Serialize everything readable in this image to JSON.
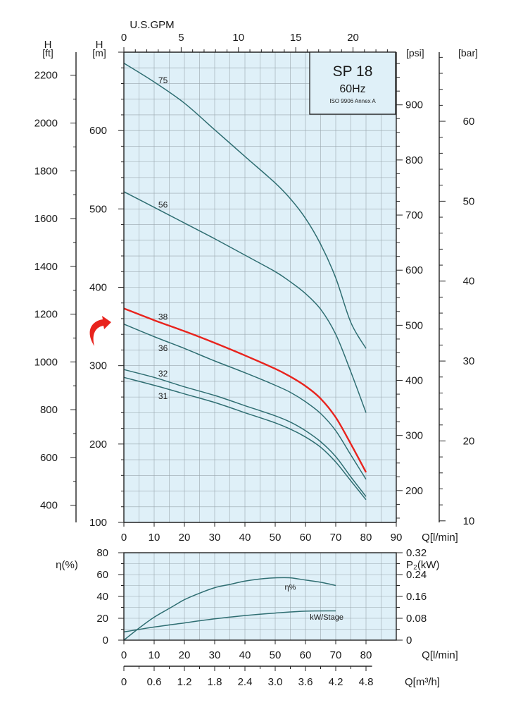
{
  "chart_data": [
    {
      "type": "line",
      "title": "SP 18",
      "subtitle": "60Hz",
      "note": "ISO 9906 Annex A",
      "xlabel": "Q[l/min]",
      "x_ticks": [
        "0",
        "10",
        "20",
        "30",
        "40",
        "50",
        "60",
        "70",
        "80",
        "90"
      ],
      "xlim": [
        0,
        90
      ],
      "top_xlabel": "U.S.GPM",
      "top_x_ticks": [
        "0",
        "5",
        "10",
        "15",
        "20"
      ],
      "ylabel_m_letter": "H",
      "ylabel_m_unit": "[m]",
      "y_ticks_m": [
        "100",
        "200",
        "300",
        "400",
        "500",
        "600"
      ],
      "ylim_m": [
        100,
        700
      ],
      "ylabel_ft_letter": "H",
      "ylabel_ft_unit": "[ft]",
      "y_ticks_ft": [
        "400",
        "600",
        "800",
        "1000",
        "1200",
        "1400",
        "1600",
        "1800",
        "2000",
        "2200"
      ],
      "ylabel_psi": "[psi]",
      "y_ticks_psi": [
        "200",
        "300",
        "400",
        "500",
        "600",
        "700",
        "800",
        "900"
      ],
      "ylabel_bar": "[bar]",
      "y_ticks_bar": [
        "10",
        "20",
        "30",
        "40",
        "50",
        "60"
      ],
      "grid": true,
      "highlight_color": "#e8231d",
      "curve_color": "#2f6e72",
      "background_color": "#dff0f8",
      "series": [
        {
          "name": "75",
          "x": [
            0,
            10,
            20,
            30,
            40,
            50,
            55,
            60,
            65,
            70,
            75,
            80
          ],
          "y": [
            686,
            662,
            635,
            601,
            567,
            533,
            513,
            488,
            455,
            412,
            355,
            322
          ],
          "highlight": false
        },
        {
          "name": "56",
          "x": [
            0,
            10,
            20,
            30,
            40,
            50,
            55,
            60,
            65,
            70,
            75,
            80
          ],
          "y": [
            522,
            502,
            482,
            462,
            441,
            420,
            407,
            392,
            372,
            340,
            292,
            240
          ],
          "highlight": false
        },
        {
          "name": "38",
          "x": [
            0,
            10,
            20,
            30,
            40,
            50,
            55,
            60,
            65,
            70,
            75,
            80
          ],
          "y": [
            373,
            358,
            344,
            329,
            313,
            296,
            286,
            274,
            258,
            234,
            200,
            164
          ],
          "highlight": true
        },
        {
          "name": "36",
          "x": [
            0,
            10,
            20,
            30,
            40,
            50,
            55,
            60,
            65,
            70,
            75,
            80
          ],
          "y": [
            353,
            337,
            322,
            306,
            291,
            275,
            266,
            254,
            239,
            217,
            186,
            155
          ],
          "highlight": false
        },
        {
          "name": "32",
          "x": [
            0,
            10,
            20,
            30,
            40,
            50,
            55,
            60,
            65,
            70,
            75,
            80
          ],
          "y": [
            295,
            285,
            273,
            262,
            249,
            236,
            228,
            217,
            203,
            184,
            158,
            133
          ],
          "highlight": false
        },
        {
          "name": "31",
          "x": [
            0,
            10,
            20,
            30,
            40,
            50,
            55,
            60,
            65,
            70,
            75,
            80
          ],
          "y": [
            285,
            275,
            264,
            253,
            240,
            227,
            219,
            209,
            196,
            177,
            153,
            129
          ],
          "highlight": false
        }
      ]
    },
    {
      "type": "line",
      "xlabel": "Q[l/min]",
      "x_ticks": [
        "0",
        "10",
        "20",
        "30",
        "40",
        "50",
        "60",
        "70",
        "80"
      ],
      "xlim": [
        0,
        80
      ],
      "ylabel_left": "η(%)",
      "y_ticks_left": [
        "0",
        "20",
        "40",
        "60",
        "80"
      ],
      "ylim_left": [
        0,
        80
      ],
      "ylabel_right": "P₂(kW)",
      "y_ticks_right": [
        "0",
        "0.08",
        "0.16",
        "0.24",
        "0.32"
      ],
      "ylim_right": [
        0,
        0.32
      ],
      "bottom_xlabel": "Q[m³/h]",
      "bottom_x_ticks": [
        "0",
        "0.6",
        "1.2",
        "1.8",
        "2.4",
        "3.0",
        "3.6",
        "4.2",
        "4.8"
      ],
      "grid": true,
      "series": [
        {
          "name": "η%",
          "axis": "left",
          "x": [
            0,
            5,
            10,
            15,
            20,
            25,
            30,
            35,
            40,
            45,
            50,
            55,
            60,
            65,
            70
          ],
          "y": [
            0,
            11,
            21,
            29,
            37,
            43,
            48,
            51,
            54,
            56,
            57,
            57,
            55,
            53,
            50
          ]
        },
        {
          "name": "kW/Stage",
          "axis": "right",
          "x": [
            0,
            10,
            20,
            30,
            40,
            50,
            60,
            70
          ],
          "y": [
            0.03,
            0.048,
            0.063,
            0.078,
            0.09,
            0.099,
            0.106,
            0.107
          ]
        }
      ]
    }
  ]
}
